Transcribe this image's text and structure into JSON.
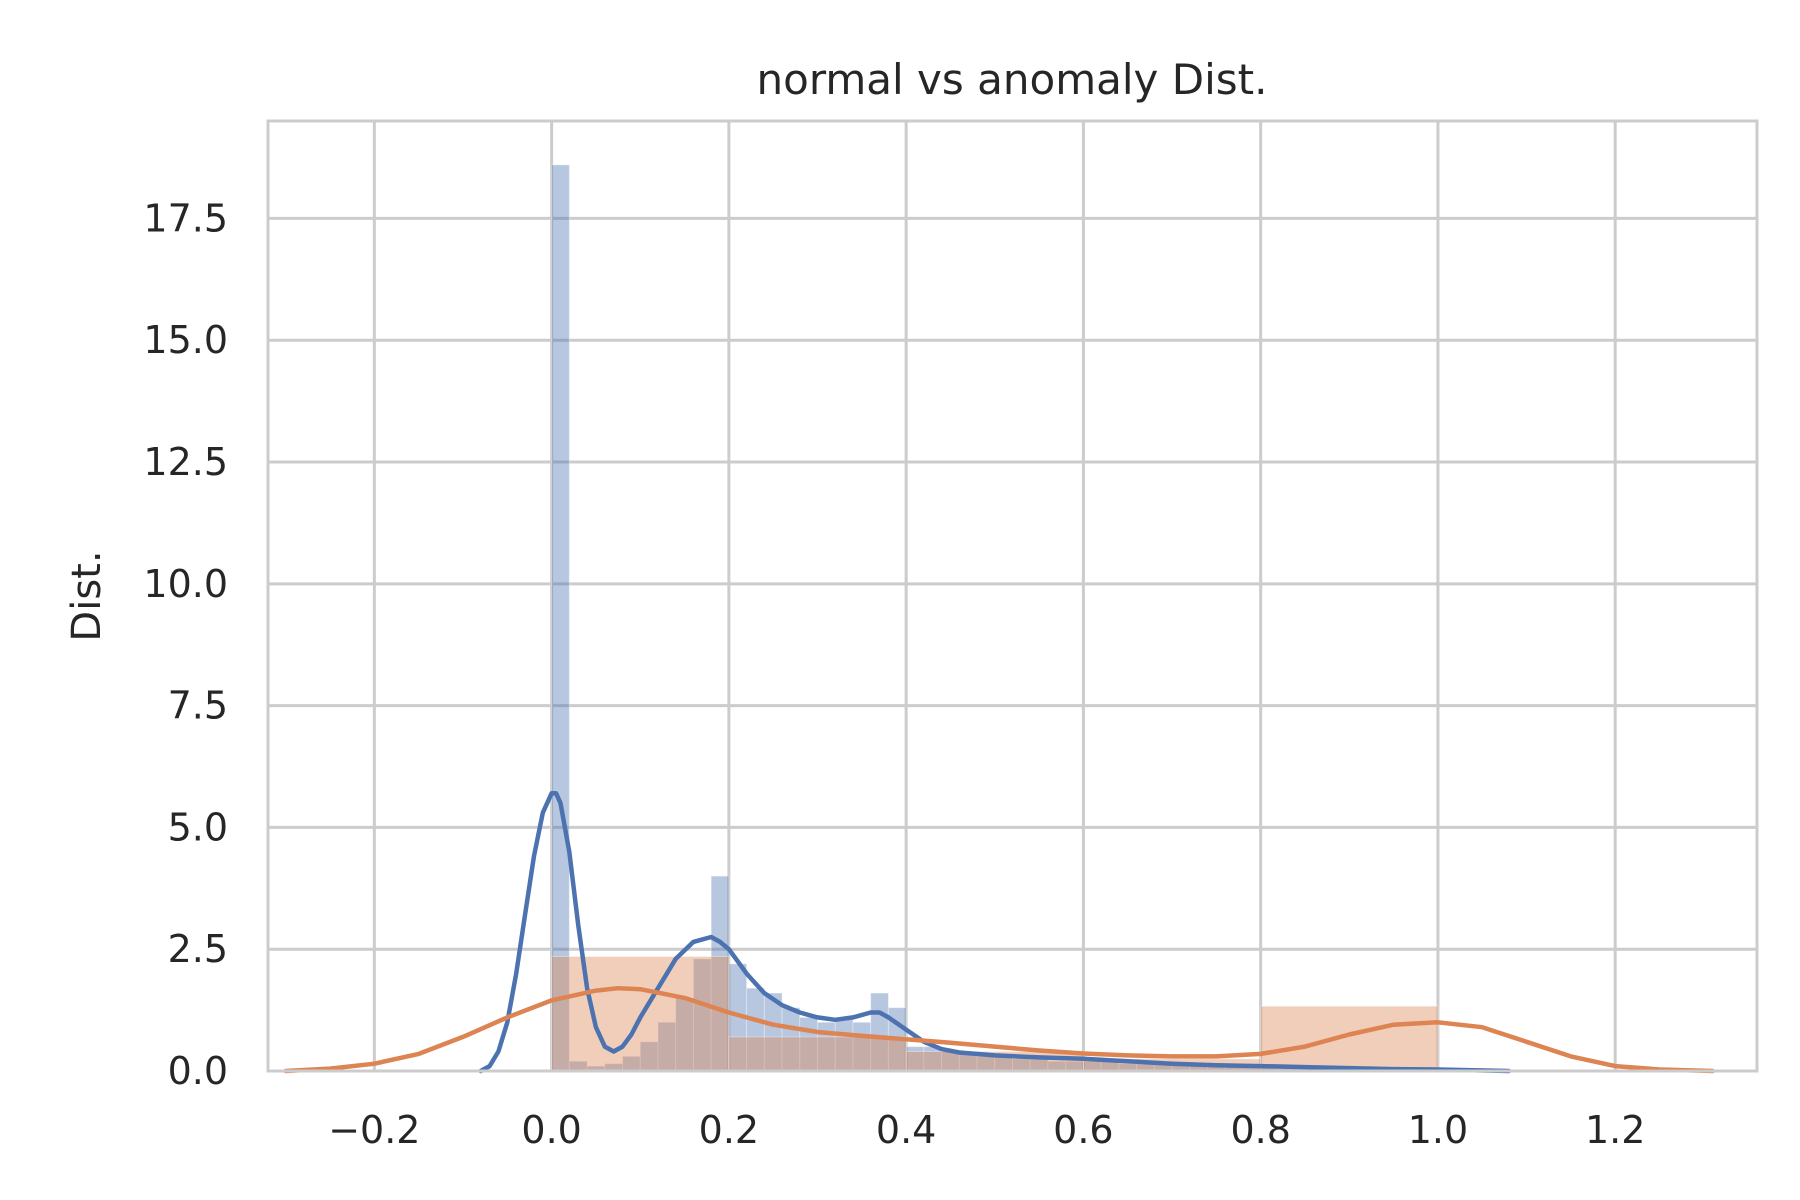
{
  "chart_data": {
    "type": "histogram",
    "title": "normal vs  anomaly Dist.",
    "xlabel": "",
    "ylabel": "Dist.",
    "xlim": [
      -0.32,
      1.36
    ],
    "ylim": [
      0,
      19.5
    ],
    "xticks": [
      "−0.2",
      "0.0",
      "0.2",
      "0.4",
      "0.6",
      "0.8",
      "1.0",
      "1.2"
    ],
    "xtick_values": [
      -0.2,
      0.0,
      0.2,
      0.4,
      0.6,
      0.8,
      1.0,
      1.2
    ],
    "yticks": [
      "0.0",
      "2.5",
      "5.0",
      "7.5",
      "10.0",
      "12.5",
      "15.0",
      "17.5"
    ],
    "ytick_values": [
      0,
      2.5,
      5,
      7.5,
      10,
      12.5,
      15,
      17.5
    ],
    "grid": true,
    "legend": "none",
    "series": [
      {
        "color": "#4c72b0",
        "histogram": {
          "bin_edges": [
            0.0,
            0.02,
            0.04,
            0.06,
            0.08,
            0.1,
            0.12,
            0.14,
            0.16,
            0.18,
            0.2,
            0.22,
            0.24,
            0.26,
            0.28,
            0.3,
            0.32,
            0.34,
            0.36,
            0.38,
            0.4,
            0.42,
            0.44,
            0.46,
            0.48,
            0.5,
            0.52,
            0.54,
            0.56,
            0.58,
            0.6,
            0.62,
            0.64,
            0.66,
            0.68,
            0.7,
            0.72,
            0.74,
            0.76,
            0.78,
            0.8,
            0.82,
            0.84,
            0.86,
            0.88,
            0.9,
            0.92,
            0.94,
            0.96,
            0.98,
            1.0,
            1.02,
            1.04,
            1.06,
            1.08
          ],
          "values": [
            18.6,
            0.2,
            0.1,
            0.15,
            0.3,
            0.6,
            1.0,
            1.5,
            2.3,
            4.0,
            2.2,
            1.7,
            1.6,
            1.3,
            1.1,
            1.0,
            1.1,
            1.0,
            1.6,
            1.3,
            0.5,
            0.5,
            0.4,
            0.35,
            0.3,
            0.3,
            0.25,
            0.25,
            0.2,
            0.2,
            0.2,
            0.2,
            0.15,
            0.15,
            0.15,
            0.15,
            0.12,
            0.12,
            0.1,
            0.1,
            0.08,
            0.08,
            0.06,
            0.06,
            0.05,
            0.05,
            0.04,
            0.04,
            0.03,
            0.03,
            0.02,
            0.02,
            0.01,
            0.01
          ]
        },
        "kde": {
          "x": [
            -0.08,
            -0.07,
            -0.06,
            -0.05,
            -0.04,
            -0.03,
            -0.02,
            -0.01,
            0.0,
            0.005,
            0.01,
            0.02,
            0.03,
            0.04,
            0.05,
            0.06,
            0.07,
            0.08,
            0.09,
            0.1,
            0.12,
            0.14,
            0.16,
            0.18,
            0.19,
            0.2,
            0.22,
            0.24,
            0.26,
            0.28,
            0.3,
            0.32,
            0.34,
            0.36,
            0.37,
            0.38,
            0.4,
            0.42,
            0.44,
            0.46,
            0.5,
            0.55,
            0.6,
            0.65,
            0.7,
            0.75,
            0.8,
            0.85,
            0.9,
            0.95,
            1.0,
            1.08
          ],
          "y": [
            0.0,
            0.1,
            0.4,
            1.0,
            2.0,
            3.2,
            4.4,
            5.3,
            5.7,
            5.7,
            5.5,
            4.5,
            3.0,
            1.7,
            0.9,
            0.5,
            0.4,
            0.5,
            0.75,
            1.1,
            1.7,
            2.3,
            2.65,
            2.75,
            2.65,
            2.5,
            2.0,
            1.6,
            1.35,
            1.2,
            1.1,
            1.05,
            1.1,
            1.2,
            1.2,
            1.1,
            0.85,
            0.6,
            0.45,
            0.38,
            0.32,
            0.28,
            0.25,
            0.2,
            0.15,
            0.12,
            0.1,
            0.08,
            0.06,
            0.04,
            0.03,
            0.0
          ]
        }
      },
      {
        "color": "#dd8452",
        "histogram": {
          "bin_edges": [
            0.0,
            0.2,
            0.4,
            0.6,
            0.8,
            1.0
          ],
          "values": [
            2.35,
            0.7,
            0.4,
            0.25,
            1.33
          ]
        },
        "kde": {
          "x": [
            -0.3,
            -0.25,
            -0.2,
            -0.15,
            -0.1,
            -0.05,
            0.0,
            0.05,
            0.075,
            0.1,
            0.15,
            0.2,
            0.25,
            0.3,
            0.35,
            0.4,
            0.45,
            0.5,
            0.55,
            0.6,
            0.65,
            0.7,
            0.75,
            0.8,
            0.85,
            0.9,
            0.95,
            1.0,
            1.05,
            1.1,
            1.15,
            1.2,
            1.25,
            1.31
          ],
          "y": [
            0.0,
            0.05,
            0.15,
            0.35,
            0.7,
            1.1,
            1.45,
            1.65,
            1.7,
            1.68,
            1.5,
            1.2,
            0.95,
            0.8,
            0.72,
            0.65,
            0.58,
            0.5,
            0.42,
            0.36,
            0.32,
            0.3,
            0.3,
            0.35,
            0.5,
            0.75,
            0.95,
            1.0,
            0.9,
            0.6,
            0.3,
            0.1,
            0.03,
            0.0
          ]
        }
      }
    ]
  }
}
